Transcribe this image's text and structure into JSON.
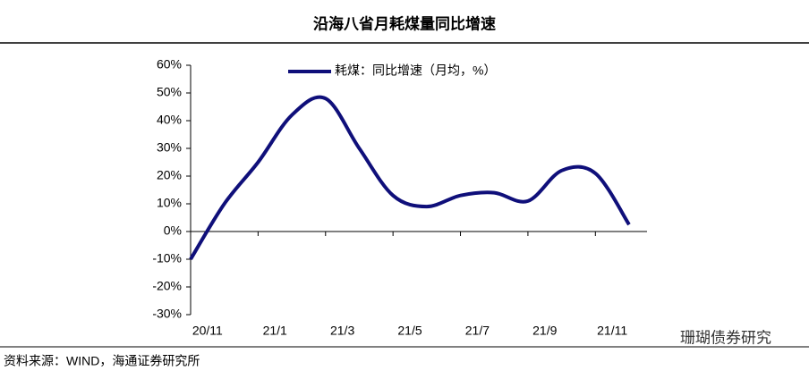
{
  "chart_data": {
    "type": "line",
    "title": "沿海八省月耗煤量同比增速",
    "categories": [
      null,
      "20/11",
      null,
      "21/1",
      null,
      "21/3",
      null,
      "21/5",
      null,
      "21/7",
      null,
      "21/9",
      null,
      "21/11"
    ],
    "series": [
      {
        "name": "耗煤：同比增速（月均，%）",
        "color": "#0f0f7a",
        "values": [
          -10,
          10,
          25,
          42,
          48,
          30,
          13,
          9,
          13,
          14,
          11,
          22,
          21,
          2.5
        ]
      }
    ],
    "ylim": [
      -30,
      60
    ],
    "yticks": [
      {
        "value": -30,
        "label": "-30%"
      },
      {
        "value": -20,
        "label": "-20%"
      },
      {
        "value": -10,
        "label": "-10%"
      },
      {
        "value": 0,
        "label": "0%"
      },
      {
        "value": 10,
        "label": "10%"
      },
      {
        "value": 20,
        "label": "20%"
      },
      {
        "value": 30,
        "label": "30%"
      },
      {
        "value": 40,
        "label": "40%"
      },
      {
        "value": 50,
        "label": "50%"
      },
      {
        "value": 60,
        "label": "60%"
      }
    ],
    "source": "资料来源：WIND，海通证券研究所",
    "watermark": "珊瑚债券研究"
  }
}
